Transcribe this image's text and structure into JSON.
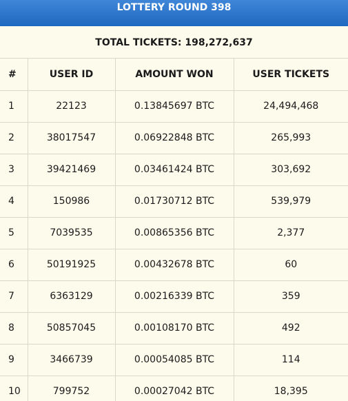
{
  "header": {
    "title": "LOTTERY ROUND 398"
  },
  "summary": {
    "total_tickets": "TOTAL TICKETS: 198,272,637"
  },
  "table": {
    "columns": [
      "#",
      "USER ID",
      "AMOUNT WON",
      "USER TICKETS"
    ],
    "rows": [
      [
        "1",
        "22123",
        "0.13845697 BTC",
        "24,494,468"
      ],
      [
        "2",
        "38017547",
        "0.06922848 BTC",
        "265,993"
      ],
      [
        "3",
        "39421469",
        "0.03461424 BTC",
        "303,692"
      ],
      [
        "4",
        "150986",
        "0.01730712 BTC",
        "539,979"
      ],
      [
        "5",
        "7039535",
        "0.00865356 BTC",
        "2,377"
      ],
      [
        "6",
        "50191925",
        "0.00432678 BTC",
        "60"
      ],
      [
        "7",
        "6363129",
        "0.00216339 BTC",
        "359"
      ],
      [
        "8",
        "50857045",
        "0.00108170 BTC",
        "492"
      ],
      [
        "9",
        "3466739",
        "0.00054085 BTC",
        "114"
      ],
      [
        "10",
        "799752",
        "0.00027042 BTC",
        "18,395"
      ]
    ]
  },
  "colors": {
    "header_bg": "#2a75cc",
    "page_bg": "#fdfbec",
    "grid": "#d8d8cc"
  }
}
